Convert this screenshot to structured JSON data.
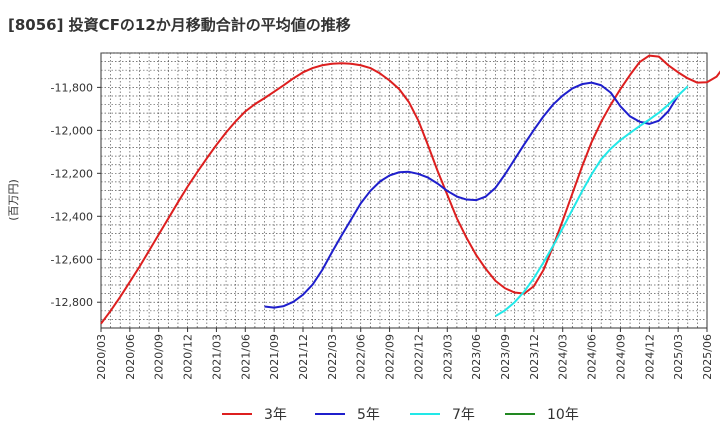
{
  "chart_data": {
    "type": "line",
    "title": "[8056]  投資CFの12か月移動合計の平均値の推移",
    "ylabel": "(百万円)",
    "xlabel": "",
    "ylim": [
      -12920,
      -11640
    ],
    "yticks": [
      -11800,
      -12000,
      -12200,
      -12400,
      -12600,
      -12800
    ],
    "ytick_labels": [
      "-11,800",
      "-12,000",
      "-12,200",
      "-12,400",
      "-12,600",
      "-12,800"
    ],
    "xticks": [
      "2020/03",
      "2020/06",
      "2020/09",
      "2020/12",
      "2021/03",
      "2021/06",
      "2021/09",
      "2021/12",
      "2022/03",
      "2022/06",
      "2022/09",
      "2022/12",
      "2023/03",
      "2023/06",
      "2023/09",
      "2023/12",
      "2024/03",
      "2024/06",
      "2024/09",
      "2024/12",
      "2025/03",
      "2025/06"
    ],
    "grid": true,
    "legend_position": "bottom",
    "series": [
      {
        "name": "3年",
        "color": "#dd1f1f",
        "start": "2020/03",
        "values": [
          -12900,
          -12840,
          -12775,
          -12705,
          -12635,
          -12560,
          -12485,
          -12410,
          -12335,
          -12262,
          -12195,
          -12130,
          -12068,
          -12010,
          -11958,
          -11912,
          -11878,
          -11850,
          -11820,
          -11790,
          -11758,
          -11730,
          -11710,
          -11697,
          -11690,
          -11688,
          -11690,
          -11697,
          -11710,
          -11735,
          -11768,
          -11808,
          -11868,
          -11955,
          -12070,
          -12190,
          -12300,
          -12410,
          -12500,
          -12580,
          -12645,
          -12700,
          -12735,
          -12755,
          -12760,
          -12725,
          -12650,
          -12540,
          -12420,
          -12295,
          -12170,
          -12055,
          -11960,
          -11880,
          -11808,
          -11742,
          -11682,
          -11652,
          -11657,
          -11698,
          -11730,
          -11758,
          -11778,
          -11776,
          -11750,
          -11690
        ]
      },
      {
        "name": "5年",
        "color": "#1f1fcc",
        "start": "2021/08",
        "values": [
          -12820,
          -12825,
          -12818,
          -12798,
          -12765,
          -12718,
          -12650,
          -12568,
          -12490,
          -12415,
          -12340,
          -12282,
          -12238,
          -12210,
          -12195,
          -12193,
          -12203,
          -12220,
          -12248,
          -12282,
          -12308,
          -12322,
          -12325,
          -12308,
          -12268,
          -12205,
          -12135,
          -12065,
          -11998,
          -11935,
          -11880,
          -11838,
          -11805,
          -11785,
          -11778,
          -11790,
          -11825,
          -11888,
          -11935,
          -11960,
          -11970,
          -11955,
          -11910,
          -11838
        ]
      },
      {
        "name": "7年",
        "color": "#22e8e8",
        "start": "2023/08",
        "values": [
          -12865,
          -12838,
          -12800,
          -12750,
          -12688,
          -12615,
          -12538,
          -12455,
          -12370,
          -12285,
          -12205,
          -12135,
          -12085,
          -12045,
          -12012,
          -11980,
          -11950,
          -11918,
          -11880,
          -11838,
          -11795
        ]
      },
      {
        "name": "10年",
        "color": "#228822",
        "start": "2025/03",
        "values": []
      }
    ]
  }
}
